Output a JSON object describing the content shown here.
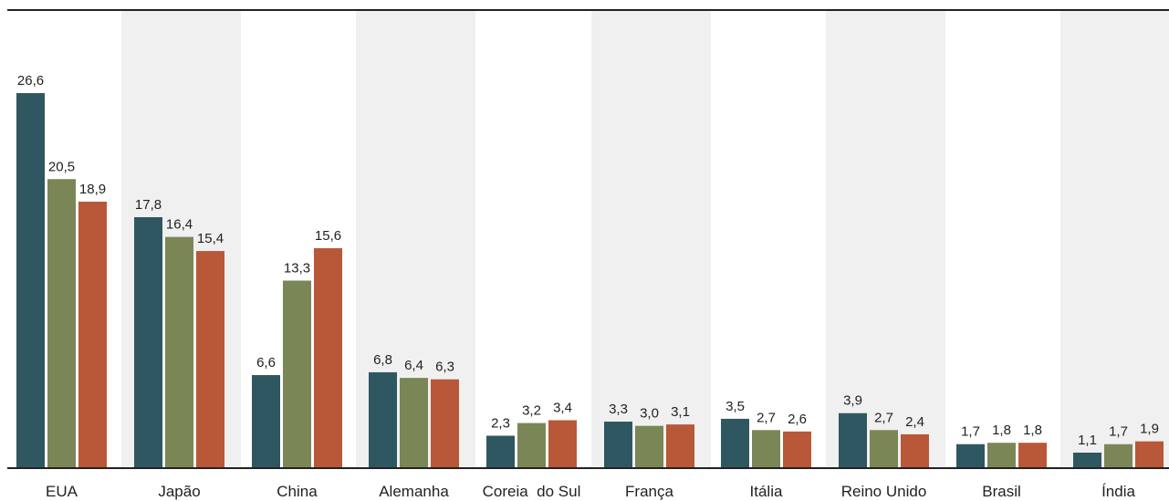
{
  "chart_data": {
    "type": "bar",
    "title": "",
    "xlabel": "",
    "ylabel": "",
    "ylim": [
      0,
      28
    ],
    "grid": false,
    "legend": "none",
    "categories": [
      "EUA",
      "Japão",
      "China",
      "Alemanha",
      "Coreia  do Sul",
      "França",
      "Itália",
      "Reino Unido",
      "Brasil",
      "Índia"
    ],
    "series": [
      {
        "values": [
          26.6,
          17.8,
          6.6,
          6.8,
          2.3,
          3.3,
          3.5,
          3.9,
          1.7,
          1.1
        ]
      },
      {
        "values": [
          20.5,
          16.4,
          13.3,
          6.4,
          3.2,
          3.0,
          2.7,
          2.7,
          1.8,
          1.7
        ]
      },
      {
        "values": [
          18.9,
          15.4,
          15.6,
          6.3,
          3.4,
          3.1,
          2.6,
          2.4,
          1.8,
          1.9
        ]
      }
    ],
    "value_labels": [
      [
        "26,6",
        "17,8",
        "6,6",
        "6,8",
        "2,3",
        "3,3",
        "3,5",
        "3,9",
        "1,7",
        "1,1"
      ],
      [
        "20,5",
        "16,4",
        "13,3",
        "6,4",
        "3,2",
        "3,0",
        "2,7",
        "2,7",
        "1,8",
        "1,7"
      ],
      [
        "18,9",
        "15,4",
        "15,6",
        "6,3",
        "3,4",
        "3,1",
        "2,6",
        "2,4",
        "1,8",
        "1,9"
      ]
    ],
    "colors": [
      "#2f5761",
      "#7b8657",
      "#b85838"
    ],
    "band_color": "#f0f0f0",
    "axis_color": "#222222"
  }
}
